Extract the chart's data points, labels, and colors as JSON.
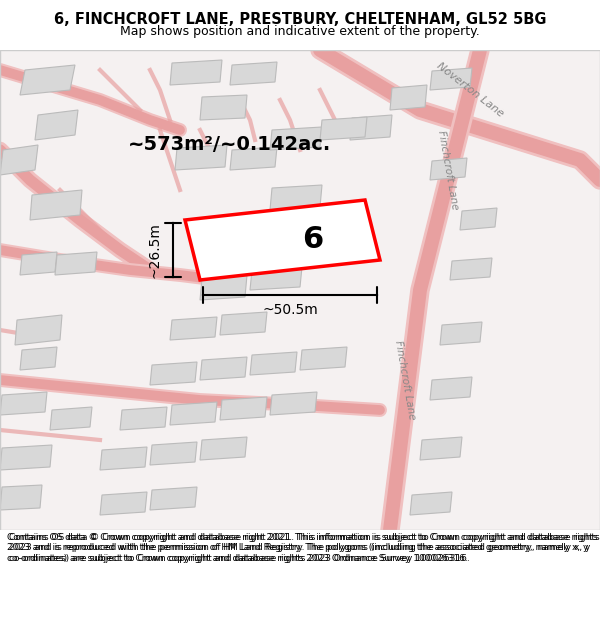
{
  "title_line1": "6, FINCHCROFT LANE, PRESTBURY, CHELTENHAM, GL52 5BG",
  "title_line2": "Map shows position and indicative extent of the property.",
  "footer_text": "Contains OS data © Crown copyright and database right 2021. This information is subject to Crown copyright and database rights 2023 and is reproduced with the permission of HM Land Registry. The polygons (including the associated geometry, namely x, y co-ordinates) are subject to Crown copyright and database rights 2023 Ordnance Survey 100026316.",
  "map_bg": "#f5f0f0",
  "map_border": "#cccccc",
  "area_label": "~573m²/~0.142ac.",
  "plot_number": "6",
  "dim_width": "~50.5m",
  "dim_height": "~26.5m",
  "plot_color": "#ff0000",
  "plot_fill": "#ffffff",
  "building_fill": "#d8d8d8",
  "building_edge": "#aaaaaa",
  "road_color": "#e8a0a0",
  "road_light": "#f0c0c0",
  "label_road1": "Noverton Lane",
  "label_road2": "Finchcroft Lane",
  "label_road3": "Finchcroft Lane"
}
